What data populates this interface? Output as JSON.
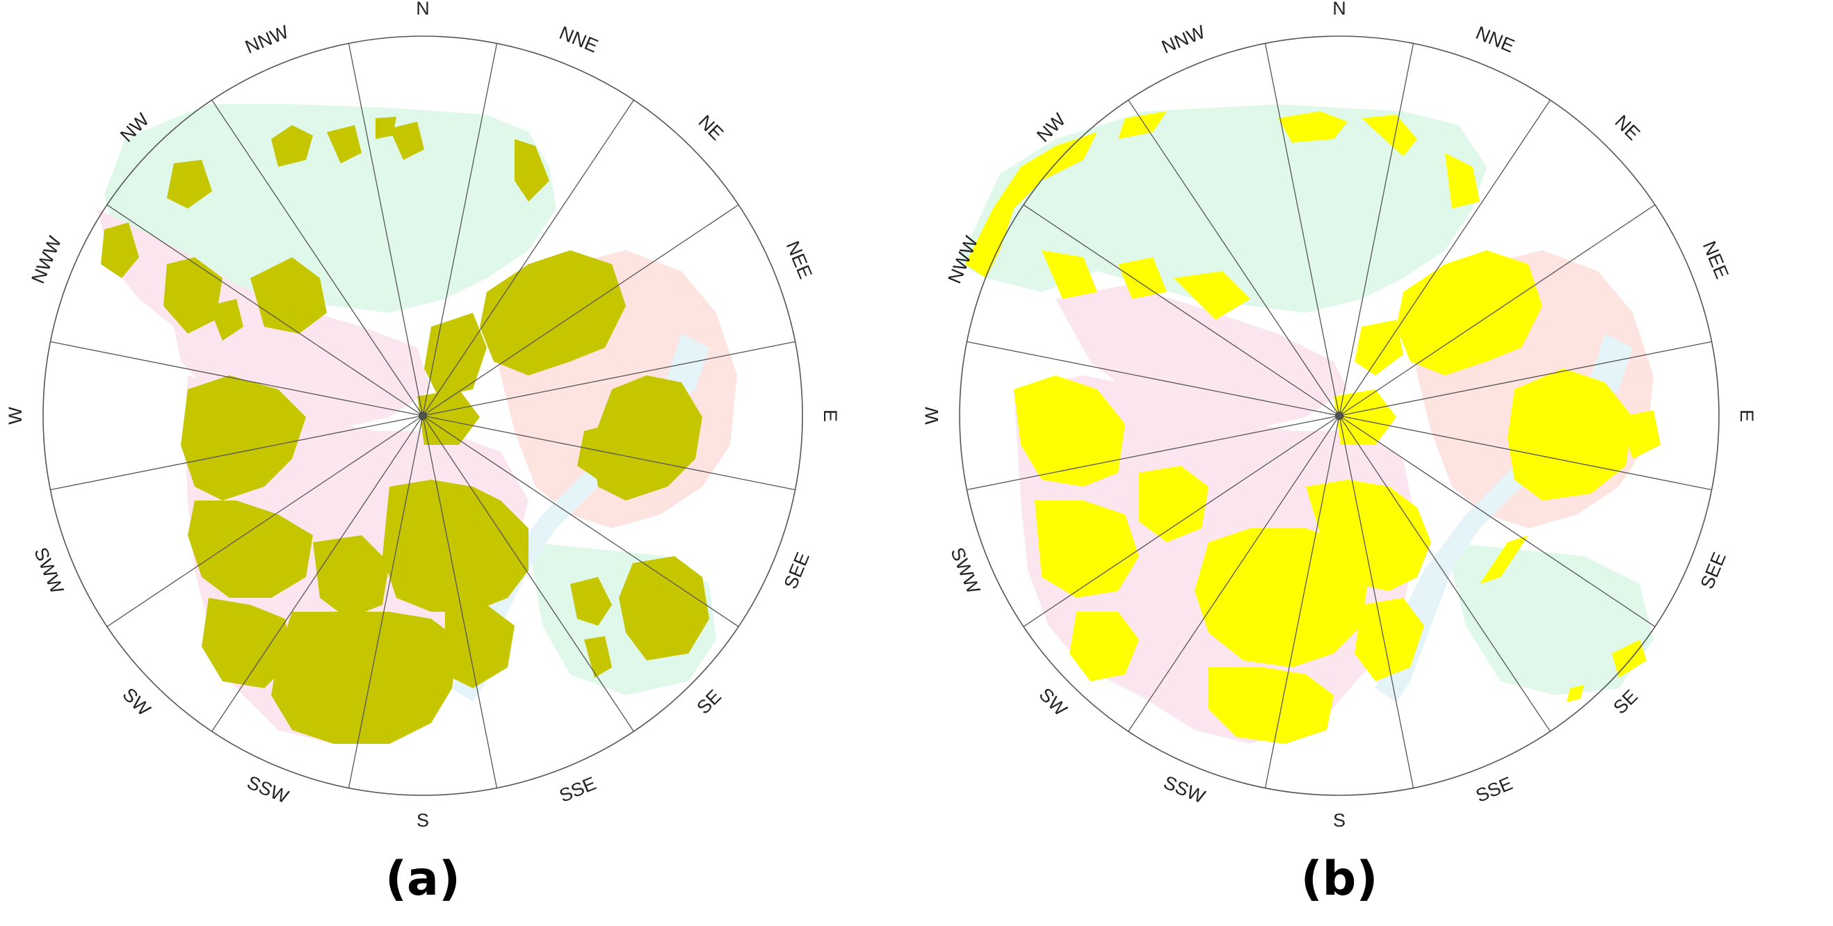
{
  "panels": [
    {
      "id": "a",
      "caption": "(a)",
      "highlight_color": "#c5c500",
      "directions": [
        "N",
        "NNE",
        "NE",
        "NEE",
        "E",
        "SEE",
        "SE",
        "SSE",
        "S",
        "SSW",
        "SW",
        "SWW",
        "W",
        "NWW",
        "NW",
        "NNW"
      ]
    },
    {
      "id": "b",
      "caption": "(b)",
      "highlight_color": "#ffff00",
      "directions": [
        "N",
        "NNE",
        "NE",
        "NEE",
        "E",
        "SEE",
        "SE",
        "SSE",
        "S",
        "SSW",
        "SW",
        "SWW",
        "W",
        "NWW",
        "NW",
        "NNW"
      ]
    }
  ],
  "base_colors": {
    "green": "#dff8ea",
    "pink": "#fbe6ef",
    "peach": "#fde4e1",
    "water": "#e4f4f8"
  }
}
